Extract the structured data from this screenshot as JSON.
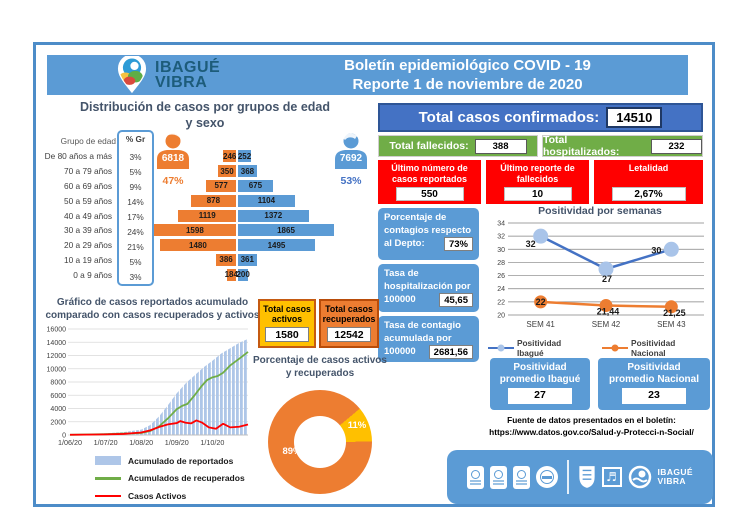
{
  "colors": {
    "blue": "#5B9BD5",
    "dark_blue": "#4472C4",
    "green": "#70AD47",
    "red": "#FF0000",
    "orange": "#ED7D31",
    "gold": "#FFC000",
    "navy": "#44546A",
    "area_blue": "#AEC6E8"
  },
  "header": {
    "logo_line1": "IBAGUÉ",
    "logo_line2": "VIBRA",
    "title_line1": "Boletín epidemiológico COVID - 19",
    "title_line2": "Reporte 1 de noviembre de 2020"
  },
  "totals": {
    "confirmed_label": "Total casos confirmados:",
    "confirmed_value": "14510",
    "deaths_label": "Total fallecidos:",
    "deaths_value": "388",
    "hosp_label": "Total hospitalizados:",
    "hosp_value": "232"
  },
  "red_boxes": [
    {
      "line1": "Último número de",
      "line2": "casos reportados",
      "value": "550"
    },
    {
      "line1": "Último reporte de",
      "line2": "fallecidos",
      "value": "10"
    },
    {
      "line1": "Letalidad",
      "line2": "",
      "value": "2,67%"
    }
  ],
  "blue_boxes": [
    {
      "line1": "Porcentaje de",
      "line2": "contagios respecto",
      "line3": "al Depto:",
      "value": "73%"
    },
    {
      "line1": "Tasa de",
      "line2": "hospitalización por",
      "line3": "100000",
      "value": "45,65"
    },
    {
      "line1": "Tasa de contagio",
      "line2": "acumulada por",
      "line3": "100000",
      "value": "2681,56"
    }
  ],
  "case_boxes": {
    "activos_line1": "Total casos",
    "activos_line2": "activos",
    "activos_value": "1580",
    "recup_line1": "Total casos",
    "recup_line2": "recuperados",
    "recup_value": "12542"
  },
  "promedio": {
    "ibague_line1": "Positividad",
    "ibague_line2": "promedio Ibagué",
    "ibague_value": "27",
    "nacional_line1": "Positividad",
    "nacional_line2": "promedio Nacional",
    "nacional_value": "23"
  },
  "fuente": {
    "line1": "Fuente de datos presentados en el boletín:",
    "line2": "https://www.datos.gov.co/Salud-y-Protecci-n-Social/"
  },
  "footer": {
    "logo_line1": "IBAGUÉ",
    "logo_line2": "VIBRA"
  },
  "chart_data": [
    {
      "name": "piramide_edad_sexo",
      "type": "bar",
      "orientation": "population-pyramid",
      "title_line1": "Distribución de casos por grupos de edad",
      "title_line2": "y sexo",
      "age_header": "Grupo de edad",
      "pct_header": "% Gr",
      "categories": [
        "De 80 años a más",
        "70 a 79 años",
        "60 a 69 años",
        "50 a 59 años",
        "40 a 49 años",
        "30 a 39 años",
        "20 a 29 años",
        "10 a 19 años",
        "0 a 9 años"
      ],
      "pct": [
        "3%",
        "5%",
        "9%",
        "14%",
        "17%",
        "24%",
        "21%",
        "5%",
        "3%"
      ],
      "series": [
        {
          "name": "Mujeres",
          "color": "#ED7D31",
          "total": "6818",
          "total_pct": "47%",
          "values": [
            246,
            350,
            577,
            878,
            1119,
            1598,
            1480,
            386,
            184
          ]
        },
        {
          "name": "Hombres",
          "color": "#5B9BD5",
          "total": "7692",
          "total_pct": "53%",
          "values": [
            252,
            368,
            675,
            1104,
            1372,
            1865,
            1495,
            361,
            200
          ]
        }
      ],
      "max_value": 1865
    },
    {
      "name": "positividad_semanas",
      "type": "line",
      "title": "Positividad por semanas",
      "categories": [
        "SEM 41",
        "SEM 42",
        "SEM 43"
      ],
      "ylim": [
        20,
        34
      ],
      "ytick_step": 2,
      "grid": true,
      "legend_position": "bottom",
      "series": [
        {
          "name": "Positividad Ibagué",
          "color": "#4472C4",
          "marker_color": "#A9C4E9",
          "values": [
            32,
            27,
            30
          ],
          "labels": [
            "32",
            "27",
            "30"
          ]
        },
        {
          "name": "Positividad Nacional",
          "color": "#ED7D31",
          "marker_color": "#ED7D31",
          "values": [
            22,
            21.44,
            21.25
          ],
          "labels": [
            "22",
            "21,44",
            "21,25"
          ]
        }
      ]
    },
    {
      "name": "acumulado_comparado",
      "type": "area",
      "title_line1": "Gráfico de casos reportados acumulado",
      "title_line2": "comparado con casos recuperados y activos",
      "x_tick_labels": [
        "1/06/20",
        "1/07/20",
        "1/08/20",
        "1/09/20",
        "1/10/20"
      ],
      "ylim": [
        0,
        16000
      ],
      "ytick_step": 2000,
      "series": [
        {
          "name": "Acumulado de reportados",
          "render": "area",
          "color": "#AEC6E8",
          "points": [
            [
              0,
              70
            ],
            [
              0.1,
              150
            ],
            [
              0.2,
              260
            ],
            [
              0.3,
              430
            ],
            [
              0.4,
              820
            ],
            [
              0.45,
              1500
            ],
            [
              0.5,
              2800
            ],
            [
              0.55,
              4500
            ],
            [
              0.6,
              6300
            ],
            [
              0.65,
              7800
            ],
            [
              0.7,
              9000
            ],
            [
              0.75,
              10200
            ],
            [
              0.8,
              11200
            ],
            [
              0.85,
              12300
            ],
            [
              0.9,
              13100
            ],
            [
              0.95,
              13900
            ],
            [
              1,
              14510
            ]
          ]
        },
        {
          "name": "Acumulados de recuperados",
          "render": "line",
          "color": "#70AD47",
          "points": [
            [
              0,
              30
            ],
            [
              0.2,
              120
            ],
            [
              0.4,
              300
            ],
            [
              0.45,
              600
            ],
            [
              0.5,
              1300
            ],
            [
              0.55,
              2500
            ],
            [
              0.6,
              3900
            ],
            [
              0.63,
              4400
            ],
            [
              0.66,
              4700
            ],
            [
              0.7,
              6000
            ],
            [
              0.74,
              7400
            ],
            [
              0.77,
              8300
            ],
            [
              0.8,
              8700
            ],
            [
              0.83,
              8900
            ],
            [
              0.86,
              9400
            ],
            [
              0.9,
              10500
            ],
            [
              0.95,
              11500
            ],
            [
              1,
              12542
            ]
          ]
        },
        {
          "name": "Casos Activos",
          "render": "line",
          "color": "#FF0000",
          "points": [
            [
              0,
              40
            ],
            [
              0.1,
              60
            ],
            [
              0.2,
              90
            ],
            [
              0.3,
              160
            ],
            [
              0.4,
              380
            ],
            [
              0.45,
              700
            ],
            [
              0.5,
              1200
            ],
            [
              0.55,
              1600
            ],
            [
              0.6,
              1800
            ],
            [
              0.62,
              2100
            ],
            [
              0.65,
              1850
            ],
            [
              0.68,
              1750
            ],
            [
              0.71,
              2200
            ],
            [
              0.74,
              1900
            ],
            [
              0.78,
              1150
            ],
            [
              0.82,
              950
            ],
            [
              0.86,
              1700
            ],
            [
              0.9,
              1150
            ],
            [
              0.95,
              1250
            ],
            [
              1,
              1580
            ]
          ]
        }
      ]
    },
    {
      "name": "porcentaje_activos_recuperados",
      "type": "pie",
      "donut": true,
      "title_line1": "Porcentaje de casos activos",
      "title_line2": "y recuperados",
      "labels": [
        "Recuperados",
        "Activos"
      ],
      "values": [
        89,
        11
      ],
      "display_labels": [
        "89%",
        "11%"
      ],
      "colors": [
        "#ED7D31",
        "#FFC000"
      ],
      "start_angle_deg": 50
    }
  ]
}
